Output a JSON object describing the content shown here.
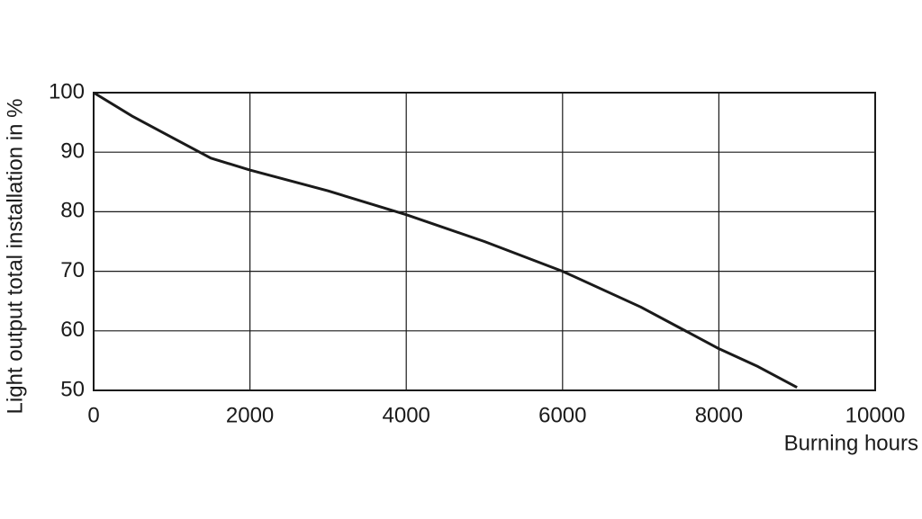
{
  "chart_data": {
    "type": "line",
    "x_label": "Burning hours",
    "y_label": "Light output total installation in %",
    "x": [
      0,
      500,
      1000,
      1500,
      2000,
      3000,
      4000,
      5000,
      6000,
      7000,
      7500,
      8000,
      8500,
      9000
    ],
    "series": [
      {
        "name": "Light output",
        "color": "#1a1a1a",
        "values": [
          100,
          96,
          92.5,
          89,
          87,
          83.5,
          79.5,
          75,
          70,
          64,
          60.5,
          57,
          54,
          50.5
        ]
      }
    ],
    "xlim": [
      0,
      10000
    ],
    "xticks": [
      0,
      2000,
      4000,
      6000,
      8000,
      10000
    ],
    "ylim": [
      50,
      100
    ],
    "yticks": [
      50,
      60,
      70,
      80,
      90,
      100
    ],
    "grid": true
  }
}
